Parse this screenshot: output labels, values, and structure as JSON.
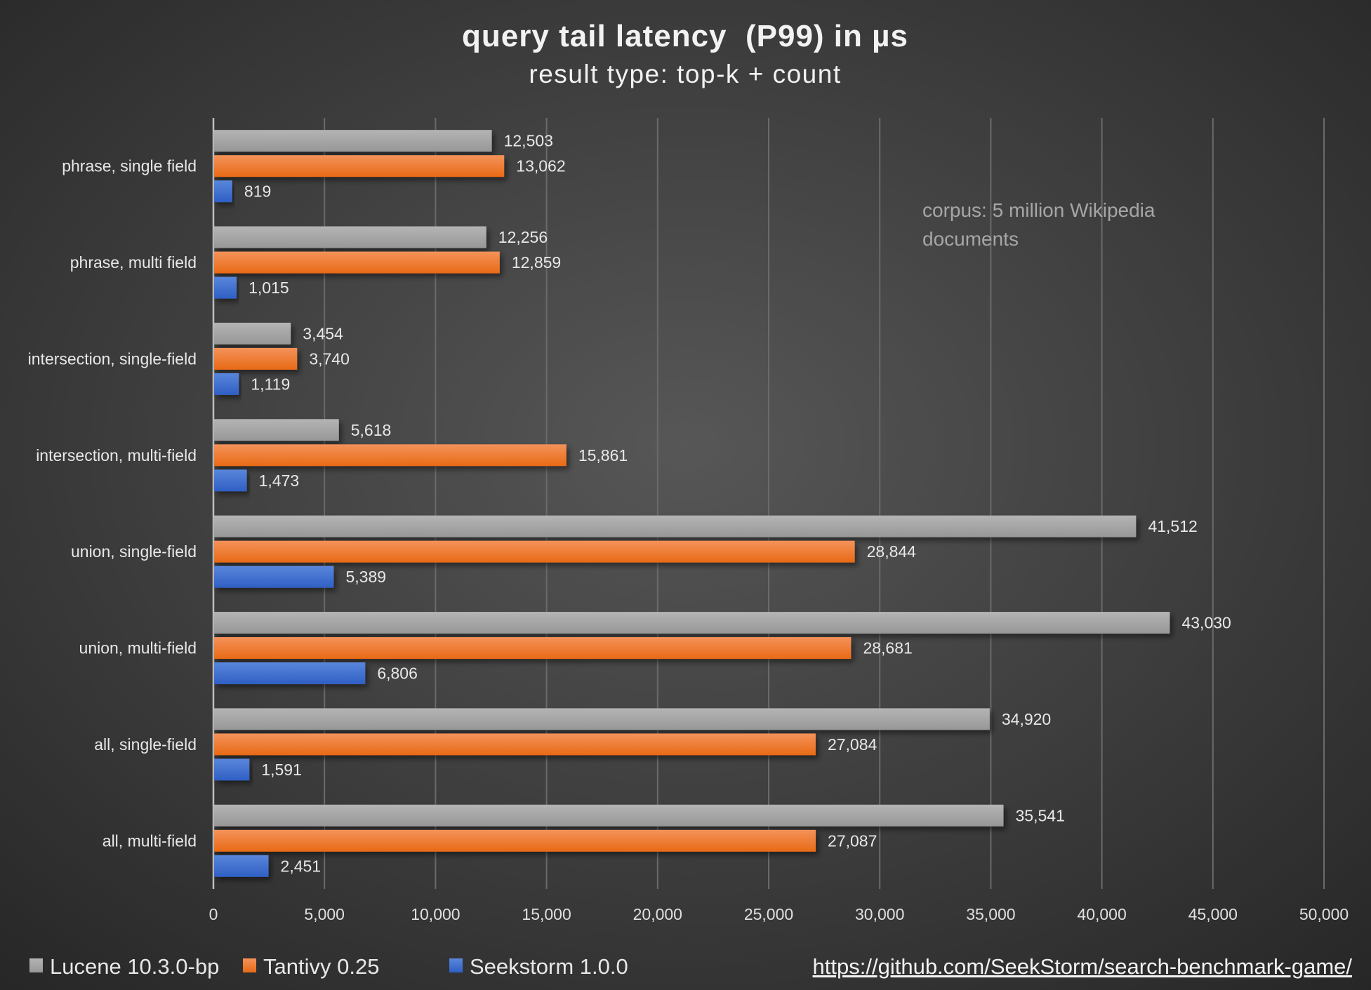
{
  "chart_data": {
    "type": "bar",
    "orientation": "horizontal",
    "title": "query tail latency  (P99) in µs",
    "subtitle": "result type: top-k + count",
    "categories": [
      "phrase, single field",
      "phrase, multi field",
      "intersection, single-field",
      "intersection, multi-field",
      "union, single-field",
      "union, multi-field",
      "all, single-field",
      "all, multi-field"
    ],
    "series": [
      {
        "name": "Lucene 10.3.0-bp",
        "color": "#a6a6a6",
        "values": [
          12503,
          12256,
          3454,
          5618,
          41512,
          43030,
          34920,
          35541
        ]
      },
      {
        "name": "Tantivy 0.25",
        "color": "#f07a25",
        "values": [
          13062,
          12859,
          3740,
          15861,
          28844,
          28681,
          27084,
          27087
        ]
      },
      {
        "name": "Seekstorm 1.0.0",
        "color": "#3f6fcf",
        "values": [
          819,
          1015,
          1119,
          1473,
          5389,
          6806,
          1591,
          2451
        ]
      }
    ],
    "xlim": [
      0,
      50000
    ],
    "xticks": [
      0,
      5000,
      10000,
      15000,
      20000,
      25000,
      30000,
      35000,
      40000,
      45000,
      50000
    ],
    "xlabel": "",
    "ylabel": "",
    "grid": "vertical",
    "legend": "bottom-left",
    "annotation": [
      "corpus: 5 million Wikipedia",
      "documents"
    ],
    "data_labels": true
  },
  "footer": {
    "link": "https://github.com/SeekStorm/search-benchmark-game/"
  }
}
